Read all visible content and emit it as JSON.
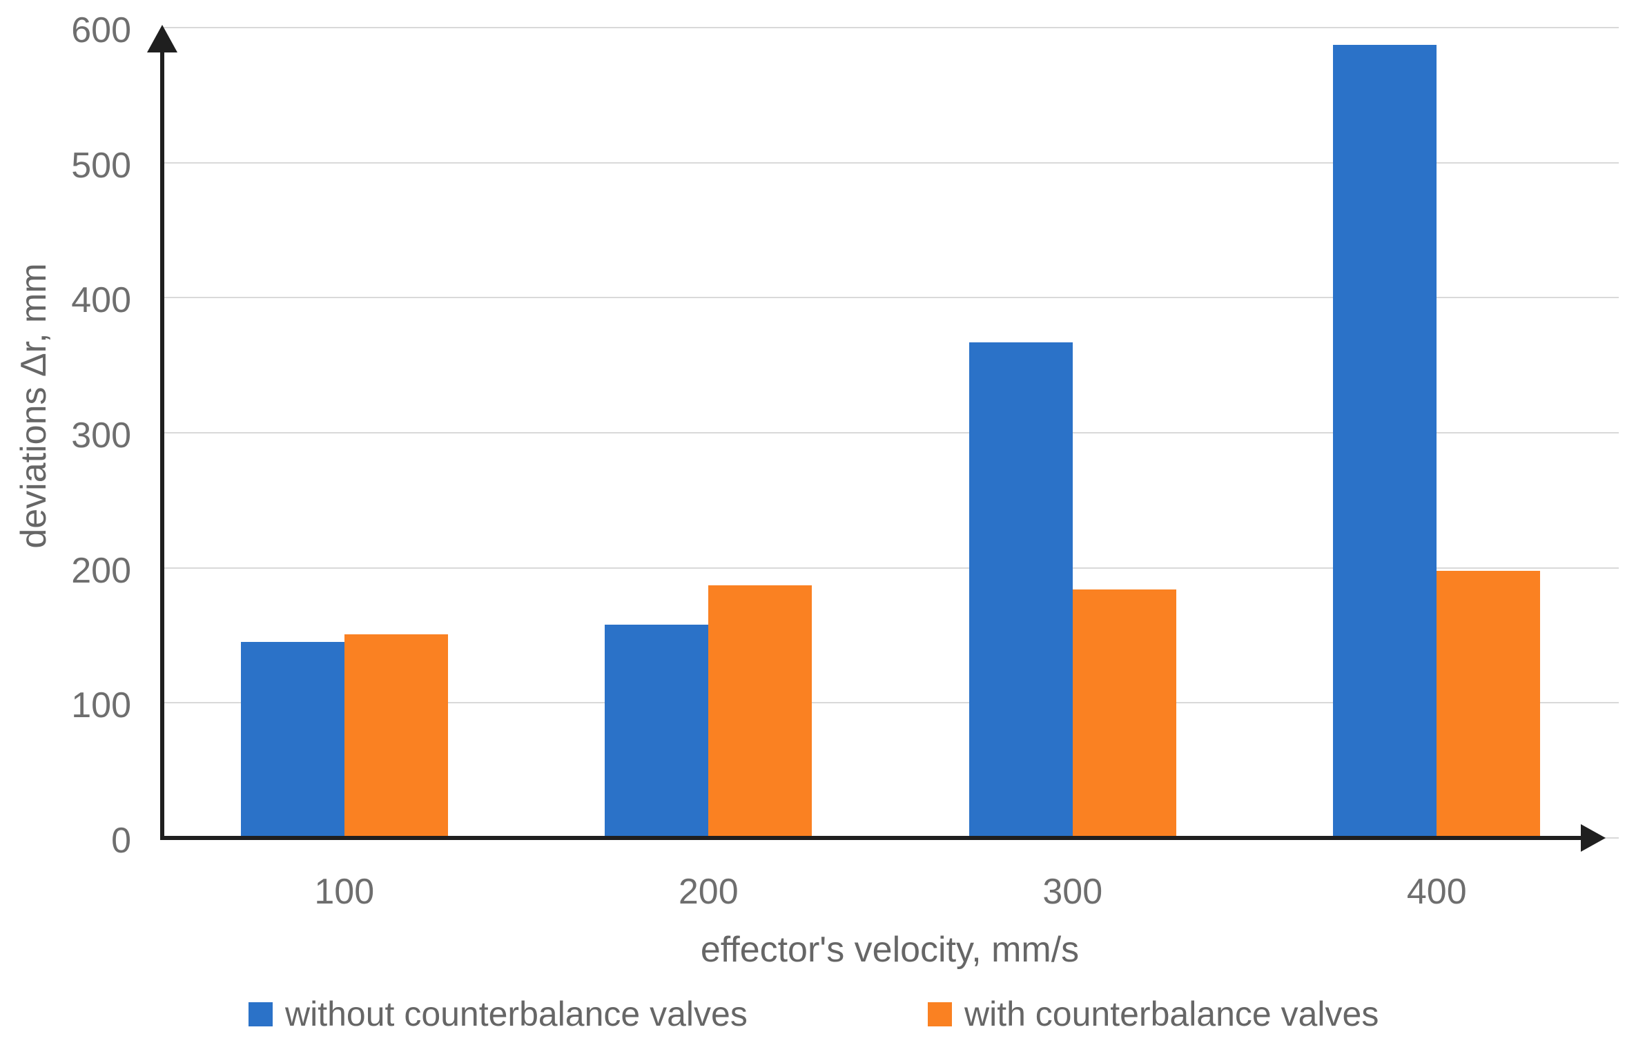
{
  "chart_data": {
    "type": "bar",
    "title": "",
    "categories": [
      "100",
      "200",
      "300",
      "400"
    ],
    "series": [
      {
        "name": "without counterbalance valves",
        "color": "#2b72c8",
        "values": [
          145,
          158,
          367,
          587
        ]
      },
      {
        "name": "with counterbalance valves",
        "color": "#fa8122",
        "values": [
          151,
          187,
          184,
          198
        ]
      }
    ],
    "xlabel": "effector's velocity, mm/s",
    "ylabel": "deviations Δr, mm",
    "ylim": [
      0,
      600
    ],
    "yticks": [
      0,
      100,
      200,
      300,
      400,
      500,
      600
    ],
    "grid": "horizontal",
    "legend_position": "bottom",
    "axis_style": "black arrows on x and y axes"
  },
  "colors": {
    "background": "#ffffff",
    "gridline": "#d9d9d9",
    "axis": "#1f1f1f",
    "tick_text": "#6e6e6e",
    "label_text": "#666666",
    "series_without": "#2b72c8",
    "series_with": "#fa8122"
  }
}
